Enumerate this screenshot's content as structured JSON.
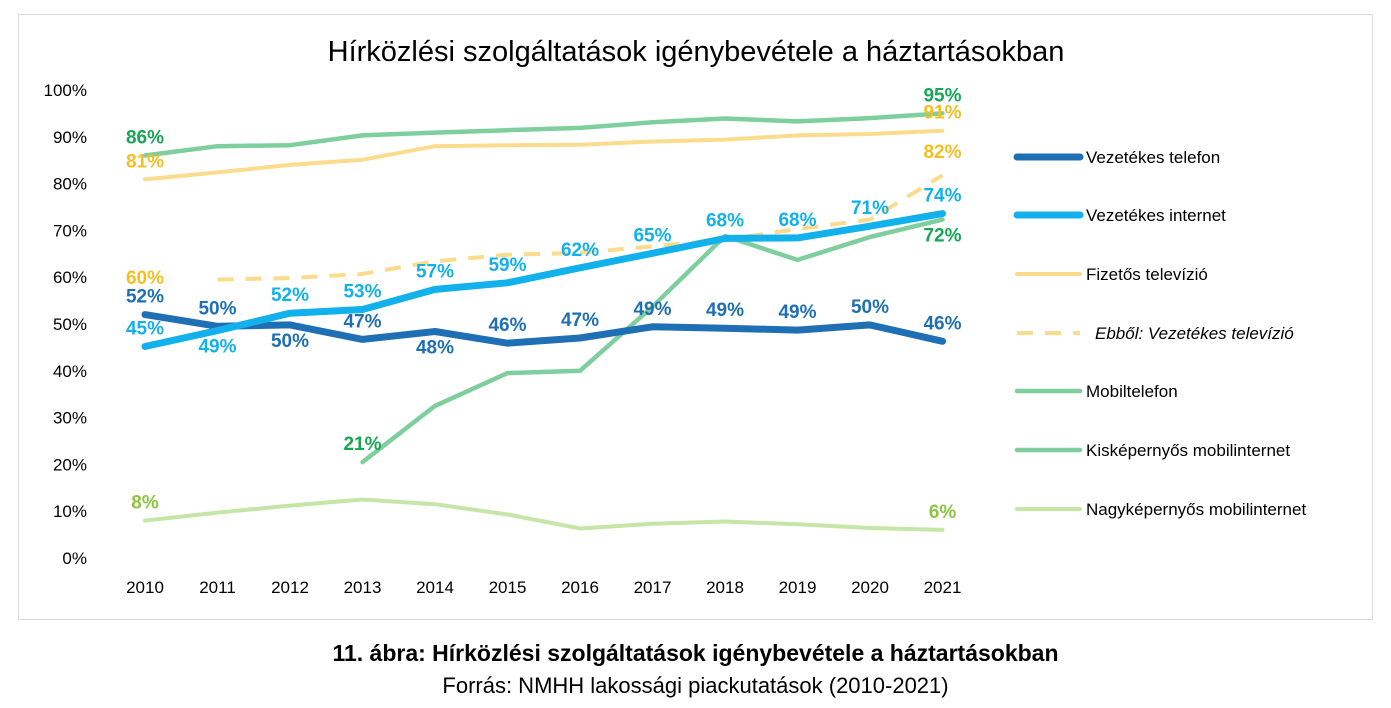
{
  "caption": {
    "title": "11. ábra: Hírközlési szolgáltatások igénybevétele a háztartásokban",
    "source": "Forrás: NMHH lakossági piackutatások (2010-2021)"
  },
  "chart_data": {
    "type": "line",
    "title": "Hírközlési szolgáltatások igénybevétele a háztartásokban",
    "x": [
      "2010",
      "2011",
      "2012",
      "2013",
      "2014",
      "2015",
      "2016",
      "2017",
      "2018",
      "2019",
      "2020",
      "2021"
    ],
    "ylim": [
      0,
      100
    ],
    "yticks": [
      "0%",
      "10%",
      "20%",
      "30%",
      "40%",
      "50%",
      "60%",
      "70%",
      "80%",
      "90%",
      "100%"
    ],
    "grid": false,
    "legend_position": "right",
    "series": [
      {
        "name": "Vezetékes telefon",
        "color": "#1F6FB5",
        "dash": false,
        "values": [
          52,
          49.5,
          49.8,
          46.7,
          48.4,
          45.9,
          47.0,
          49.4,
          49.1,
          48.7,
          49.8,
          46.3
        ],
        "labels": [
          {
            "i": 0,
            "text": "52%",
            "pos": "above"
          },
          {
            "i": 1,
            "text": "50%",
            "pos": "above"
          },
          {
            "i": 2,
            "text": "50%",
            "pos": "below"
          },
          {
            "i": 3,
            "text": "47%",
            "pos": "above"
          },
          {
            "i": 4,
            "text": "48%",
            "pos": "below"
          },
          {
            "i": 5,
            "text": "46%",
            "pos": "above"
          },
          {
            "i": 6,
            "text": "47%",
            "pos": "above"
          },
          {
            "i": 7,
            "text": "49%",
            "pos": "above"
          },
          {
            "i": 8,
            "text": "49%",
            "pos": "above"
          },
          {
            "i": 9,
            "text": "49%",
            "pos": "above"
          },
          {
            "i": 10,
            "text": "50%",
            "pos": "above"
          },
          {
            "i": 11,
            "text": "46%",
            "pos": "above"
          }
        ]
      },
      {
        "name": "Vezetékes internet",
        "color": "#12B1EC",
        "dash": false,
        "values": [
          45.2,
          48.6,
          52.3,
          53.1,
          57.4,
          58.8,
          62.0,
          65.1,
          68.3,
          68.4,
          70.9,
          73.6
        ],
        "labels": [
          {
            "i": 0,
            "text": "45%",
            "pos": "above"
          },
          {
            "i": 1,
            "text": "49%",
            "pos": "below"
          },
          {
            "i": 2,
            "text": "52%",
            "pos": "above"
          },
          {
            "i": 3,
            "text": "53%",
            "pos": "above"
          },
          {
            "i": 4,
            "text": "57%",
            "pos": "above"
          },
          {
            "i": 5,
            "text": "59%",
            "pos": "above"
          },
          {
            "i": 6,
            "text": "62%",
            "pos": "above"
          },
          {
            "i": 7,
            "text": "65%",
            "pos": "above"
          },
          {
            "i": 8,
            "text": "68%",
            "pos": "above"
          },
          {
            "i": 9,
            "text": "68%",
            "pos": "above"
          },
          {
            "i": 10,
            "text": "71%",
            "pos": "above"
          },
          {
            "i": 11,
            "text": "74%",
            "pos": "above"
          }
        ]
      },
      {
        "name": "Fizetős televízió",
        "color": "#FADC8C",
        "dash": false,
        "values": [
          80.9,
          82.4,
          84.0,
          85.1,
          88.0,
          88.2,
          88.3,
          89.0,
          89.4,
          90.3,
          90.6,
          91.3
        ],
        "labels": [
          {
            "i": 0,
            "text": "81%",
            "pos": "above"
          },
          {
            "i": 11,
            "text": "91%",
            "pos": "above"
          }
        ]
      },
      {
        "name": "Ebből: Vezetékes televízió",
        "color": "#FADC8C",
        "dash": true,
        "values": [
          null,
          59.5,
          59.8,
          60.7,
          63.4,
          64.8,
          65.2,
          66.6,
          68.0,
          70.3,
          72.3,
          81.8
        ],
        "labels": [
          {
            "i": 0,
            "text": "60%",
            "pos": "custom",
            "y": 60
          },
          {
            "i": 11,
            "text": "82%",
            "pos": "custom",
            "y": 87
          }
        ]
      },
      {
        "name": "Mobiltelefon",
        "color": "#7FCF9E",
        "dash": false,
        "values": [
          86.0,
          88.0,
          88.2,
          90.3,
          90.9,
          91.4,
          91.9,
          93.1,
          93.9,
          93.3,
          94.0,
          95.0
        ],
        "labels": [
          {
            "i": 0,
            "text": "86%",
            "pos": "above"
          },
          {
            "i": 11,
            "text": "95%",
            "pos": "above"
          }
        ]
      },
      {
        "name": "Kisképernyős mobilinternet",
        "color": "#7FCF9E",
        "dash": false,
        "values": [
          null,
          null,
          null,
          20.5,
          32.5,
          39.5,
          40.0,
          53.7,
          68.8,
          63.7,
          68.6,
          72.3
        ],
        "labels": [
          {
            "i": 3,
            "text": "21%",
            "pos": "above"
          },
          {
            "i": 11,
            "text": "72%",
            "pos": "below"
          }
        ]
      },
      {
        "name": "Nagyképernyős mobilinternet",
        "color": "#C6E6A8",
        "dash": false,
        "values": [
          8.0,
          9.7,
          11.2,
          12.5,
          11.5,
          9.3,
          6.3,
          7.3,
          7.8,
          7.2,
          6.4,
          6.0
        ],
        "labels": [
          {
            "i": 0,
            "text": "8%",
            "pos": "above"
          },
          {
            "i": 11,
            "text": "6%",
            "pos": "above"
          }
        ]
      }
    ]
  }
}
